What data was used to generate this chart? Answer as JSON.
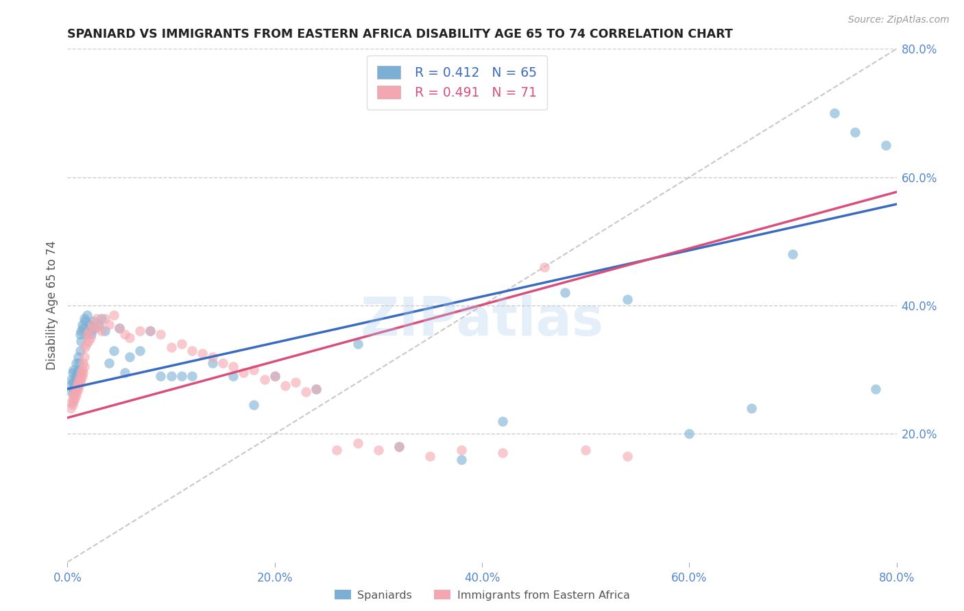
{
  "title": "SPANIARD VS IMMIGRANTS FROM EASTERN AFRICA DISABILITY AGE 65 TO 74 CORRELATION CHART",
  "source": "Source: ZipAtlas.com",
  "ylabel": "Disability Age 65 to 74",
  "xlim": [
    0.0,
    0.8
  ],
  "ylim": [
    0.0,
    0.8
  ],
  "xticks": [
    0.0,
    0.2,
    0.4,
    0.6,
    0.8
  ],
  "yticks": [
    0.2,
    0.4,
    0.6,
    0.8
  ],
  "xticklabels": [
    "0.0%",
    "20.0%",
    "40.0%",
    "60.0%",
    "80.0%"
  ],
  "yticklabels": [
    "20.0%",
    "40.0%",
    "60.0%",
    "80.0%"
  ],
  "grid_color": "#cccccc",
  "background_color": "#ffffff",
  "blue_color": "#7bafd4",
  "pink_color": "#f4a7b0",
  "blue_line_color": "#3a6bbf",
  "pink_line_color": "#d94f7a",
  "dashed_line_color": "#c0b8b8",
  "R_blue": 0.412,
  "N_blue": 65,
  "R_pink": 0.491,
  "N_pink": 71,
  "legend_label_blue": "Spaniards",
  "legend_label_pink": "Immigrants from Eastern Africa",
  "watermark": "ZIPatlas",
  "blue_intercept": 0.27,
  "blue_slope": 0.36,
  "pink_intercept": 0.225,
  "pink_slope": 0.44,
  "spaniards_x": [
    0.003,
    0.004,
    0.004,
    0.005,
    0.005,
    0.006,
    0.006,
    0.007,
    0.007,
    0.008,
    0.008,
    0.009,
    0.009,
    0.01,
    0.01,
    0.011,
    0.011,
    0.012,
    0.012,
    0.013,
    0.013,
    0.014,
    0.015,
    0.016,
    0.017,
    0.018,
    0.019,
    0.02,
    0.021,
    0.022,
    0.023,
    0.025,
    0.027,
    0.03,
    0.033,
    0.036,
    0.04,
    0.045,
    0.05,
    0.055,
    0.06,
    0.07,
    0.08,
    0.09,
    0.1,
    0.11,
    0.12,
    0.14,
    0.16,
    0.18,
    0.2,
    0.24,
    0.28,
    0.32,
    0.38,
    0.42,
    0.48,
    0.54,
    0.6,
    0.66,
    0.7,
    0.74,
    0.76,
    0.78,
    0.79
  ],
  "spaniards_y": [
    0.275,
    0.285,
    0.265,
    0.28,
    0.295,
    0.27,
    0.3,
    0.285,
    0.275,
    0.29,
    0.31,
    0.295,
    0.285,
    0.3,
    0.32,
    0.295,
    0.31,
    0.33,
    0.355,
    0.345,
    0.36,
    0.37,
    0.365,
    0.38,
    0.375,
    0.355,
    0.385,
    0.36,
    0.37,
    0.36,
    0.355,
    0.375,
    0.365,
    0.37,
    0.38,
    0.36,
    0.31,
    0.33,
    0.365,
    0.295,
    0.32,
    0.33,
    0.36,
    0.29,
    0.29,
    0.29,
    0.29,
    0.31,
    0.29,
    0.245,
    0.29,
    0.27,
    0.34,
    0.18,
    0.16,
    0.22,
    0.42,
    0.41,
    0.2,
    0.24,
    0.48,
    0.7,
    0.67,
    0.27,
    0.65
  ],
  "immigrants_x": [
    0.003,
    0.004,
    0.005,
    0.005,
    0.006,
    0.006,
    0.007,
    0.007,
    0.008,
    0.008,
    0.009,
    0.009,
    0.01,
    0.01,
    0.011,
    0.011,
    0.012,
    0.012,
    0.013,
    0.013,
    0.014,
    0.014,
    0.015,
    0.015,
    0.016,
    0.016,
    0.017,
    0.018,
    0.019,
    0.02,
    0.021,
    0.022,
    0.024,
    0.026,
    0.028,
    0.03,
    0.033,
    0.036,
    0.04,
    0.045,
    0.05,
    0.055,
    0.06,
    0.07,
    0.08,
    0.09,
    0.1,
    0.11,
    0.12,
    0.13,
    0.14,
    0.15,
    0.16,
    0.17,
    0.18,
    0.19,
    0.2,
    0.21,
    0.22,
    0.23,
    0.24,
    0.26,
    0.28,
    0.3,
    0.32,
    0.35,
    0.38,
    0.42,
    0.46,
    0.5,
    0.54
  ],
  "immigrants_y": [
    0.24,
    0.248,
    0.255,
    0.245,
    0.26,
    0.25,
    0.265,
    0.255,
    0.27,
    0.26,
    0.275,
    0.265,
    0.28,
    0.27,
    0.285,
    0.275,
    0.29,
    0.28,
    0.295,
    0.285,
    0.3,
    0.29,
    0.31,
    0.295,
    0.32,
    0.305,
    0.335,
    0.34,
    0.355,
    0.345,
    0.36,
    0.35,
    0.37,
    0.365,
    0.38,
    0.37,
    0.36,
    0.38,
    0.37,
    0.385,
    0.365,
    0.355,
    0.35,
    0.36,
    0.36,
    0.355,
    0.335,
    0.34,
    0.33,
    0.325,
    0.32,
    0.31,
    0.305,
    0.295,
    0.3,
    0.285,
    0.29,
    0.275,
    0.28,
    0.265,
    0.27,
    0.175,
    0.185,
    0.175,
    0.18,
    0.165,
    0.175,
    0.17,
    0.46,
    0.175,
    0.165
  ]
}
